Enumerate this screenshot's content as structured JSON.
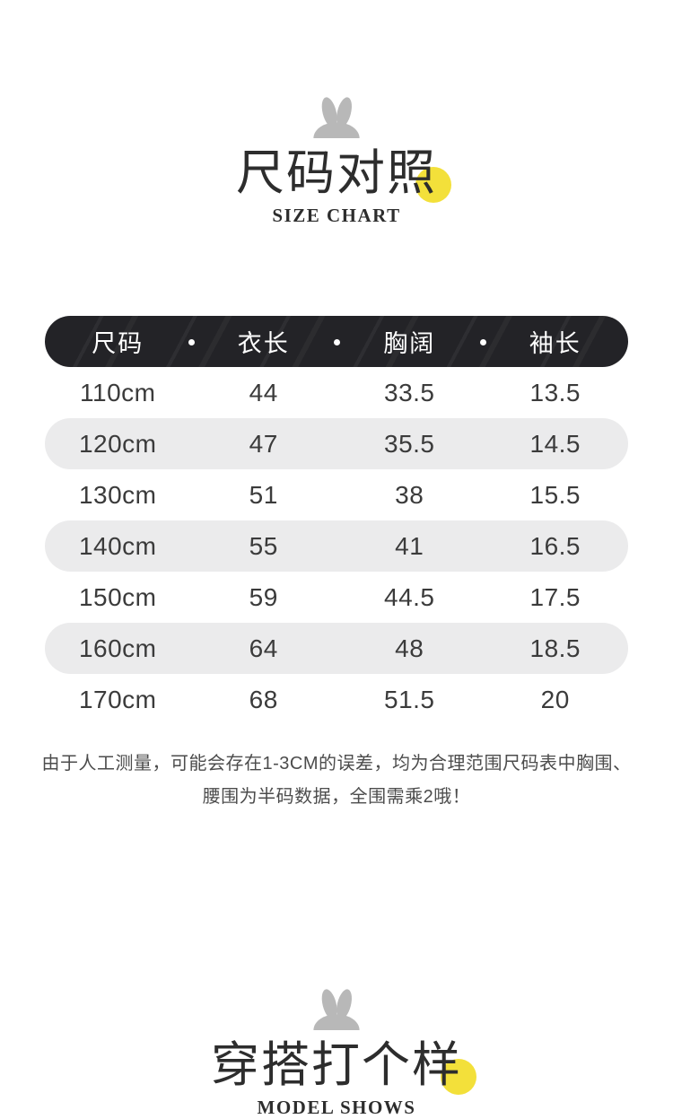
{
  "theme": {
    "accent_yellow": "#f3e03a",
    "bunny_gray": "#b8b8b8",
    "header_bar_bg": "#232327",
    "alt_row_bg": "#ebebec",
    "page_bg": "#ffffff"
  },
  "size_chart_section": {
    "title": "尺码对照",
    "subtitle": "SIZE CHART"
  },
  "chart_data": {
    "type": "table",
    "title": "尺码对照 (SIZE CHART)",
    "columns": [
      "尺码",
      "衣长",
      "胸阔",
      "袖长"
    ],
    "rows": [
      [
        "110cm",
        "44",
        "33.5",
        "13.5"
      ],
      [
        "120cm",
        "47",
        "35.5",
        "14.5"
      ],
      [
        "130cm",
        "51",
        "38",
        "15.5"
      ],
      [
        "140cm",
        "55",
        "41",
        "16.5"
      ],
      [
        "150cm",
        "59",
        "44.5",
        "17.5"
      ],
      [
        "160cm",
        "64",
        "48",
        "18.5"
      ],
      [
        "170cm",
        "68",
        "51.5",
        "20"
      ]
    ],
    "layout_hints": {
      "header_style": "black pill bar with dot separators",
      "alternating_rows": "even rows light gray pill"
    }
  },
  "note": {
    "line1": "由于人工测量，可能会存在1-3CM的误差，均为合理范围尺码表中胸围、",
    "line2": "腰围为半码数据，全围需乘2哦！"
  },
  "model_shows_section": {
    "title": "穿搭打个样",
    "subtitle": "MODEL SHOWS"
  }
}
